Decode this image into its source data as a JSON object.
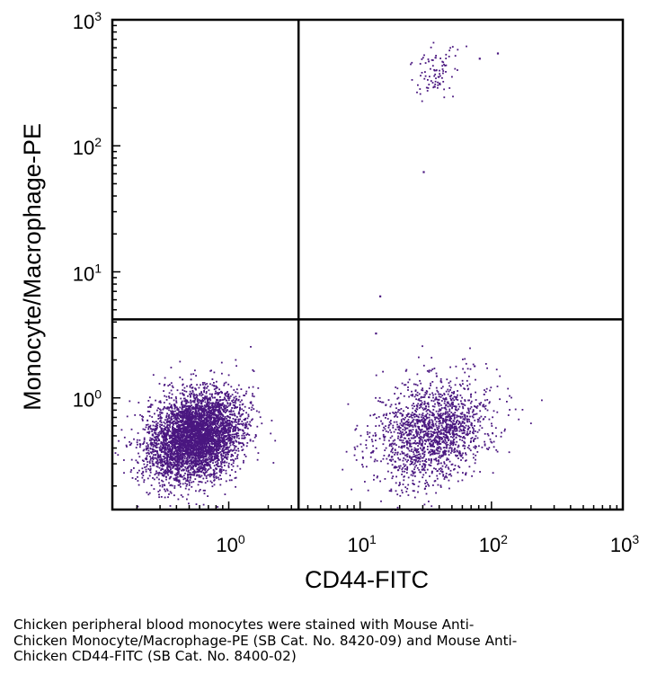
{
  "chart_data": {
    "type": "scatter",
    "subtype": "flow-cytometry-dot-plot",
    "xlabel": "CD44-FITC",
    "ylabel": "Monocyte/Macrophage-PE",
    "x_scale": "log",
    "y_scale": "log",
    "xlim": [
      0.13,
      1000
    ],
    "ylim": [
      0.13,
      1000
    ],
    "x_ticks": [
      {
        "base": "10",
        "exp": "0",
        "value": 1
      },
      {
        "base": "10",
        "exp": "1",
        "value": 10
      },
      {
        "base": "10",
        "exp": "2",
        "value": 100
      },
      {
        "base": "10",
        "exp": "3",
        "value": 1000
      }
    ],
    "y_ticks": [
      {
        "base": "10",
        "exp": "0",
        "value": 1
      },
      {
        "base": "10",
        "exp": "1",
        "value": 10
      },
      {
        "base": "10",
        "exp": "2",
        "value": 100
      },
      {
        "base": "10",
        "exp": "3",
        "value": 1000
      }
    ],
    "quadrant_gates": {
      "x": 3.4,
      "y": 4.2
    },
    "point_color": "#4a1780",
    "populations": [
      {
        "name": "CD44-negative, Mon/Mac-negative",
        "center_x": 0.55,
        "center_y": 0.5,
        "spread_log_x": 0.18,
        "spread_log_y": 0.17,
        "count": 4500
      },
      {
        "name": "CD44-positive, Mon/Mac-negative",
        "center_x": 35,
        "center_y": 0.55,
        "spread_log_x": 0.22,
        "spread_log_y": 0.2,
        "count": 1700
      },
      {
        "name": "CD44-positive, Mon/Mac-positive",
        "center_x": 38,
        "center_y": 380,
        "spread_log_x": 0.09,
        "spread_log_y": 0.1,
        "count": 90
      }
    ],
    "outliers": [
      {
        "x": 14,
        "y": 6.5
      },
      {
        "x": 30,
        "y": 63
      },
      {
        "x": 110,
        "y": 550
      },
      {
        "x": 80,
        "y": 500
      },
      {
        "x": 13,
        "y": 3.3
      }
    ]
  },
  "caption": {
    "lines": [
      "Chicken peripheral blood monocytes were stained with Mouse Anti-",
      "Chicken Monocyte/Macrophage-PE (SB Cat. No. 8420-09) and Mouse Anti-",
      "Chicken CD44-FITC (SB Cat. No. 8400-02)"
    ]
  }
}
